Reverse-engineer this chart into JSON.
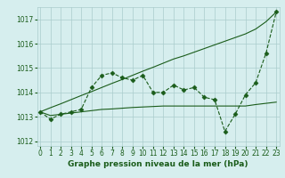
{
  "x": [
    0,
    1,
    2,
    3,
    4,
    5,
    6,
    7,
    8,
    9,
    10,
    11,
    12,
    13,
    14,
    15,
    16,
    17,
    18,
    19,
    20,
    21,
    22,
    23
  ],
  "series_main": [
    1013.2,
    1012.9,
    1013.1,
    1013.2,
    1013.3,
    1014.2,
    1014.7,
    1014.8,
    1014.6,
    1014.5,
    1014.7,
    1014.0,
    1014.0,
    1014.3,
    1014.1,
    1014.2,
    1013.8,
    1013.7,
    1012.4,
    1013.1,
    1013.9,
    1014.4,
    1015.6,
    1017.3
  ],
  "series_smooth": [
    1013.2,
    1013.05,
    1013.1,
    1013.15,
    1013.2,
    1013.25,
    1013.3,
    1013.32,
    1013.35,
    1013.38,
    1013.4,
    1013.42,
    1013.44,
    1013.44,
    1013.44,
    1013.44,
    1013.44,
    1013.44,
    1013.44,
    1013.44,
    1013.44,
    1013.5,
    1013.55,
    1013.6
  ],
  "series_linear": [
    1013.2,
    1013.37,
    1013.53,
    1013.7,
    1013.87,
    1014.03,
    1014.2,
    1014.37,
    1014.53,
    1014.7,
    1014.87,
    1015.03,
    1015.2,
    1015.37,
    1015.5,
    1015.65,
    1015.8,
    1015.95,
    1016.1,
    1016.25,
    1016.4,
    1016.6,
    1016.9,
    1017.3
  ],
  "ylim": [
    1011.8,
    1017.5
  ],
  "yticks": [
    1012,
    1013,
    1014,
    1015,
    1016,
    1017
  ],
  "xticks": [
    0,
    1,
    2,
    3,
    4,
    5,
    6,
    7,
    8,
    9,
    10,
    11,
    12,
    13,
    14,
    15,
    16,
    17,
    18,
    19,
    20,
    21,
    22,
    23
  ],
  "xlabel": "Graphe pression niveau de la mer (hPa)",
  "bg_color": "#d6eeee",
  "grid_color": "#aacccc",
  "line_color": "#1a5c1a",
  "marker": "D",
  "marker_size": 2.5,
  "font_color": "#1a5c1a",
  "label_fontsize": 5.5,
  "xlabel_fontsize": 6.5
}
